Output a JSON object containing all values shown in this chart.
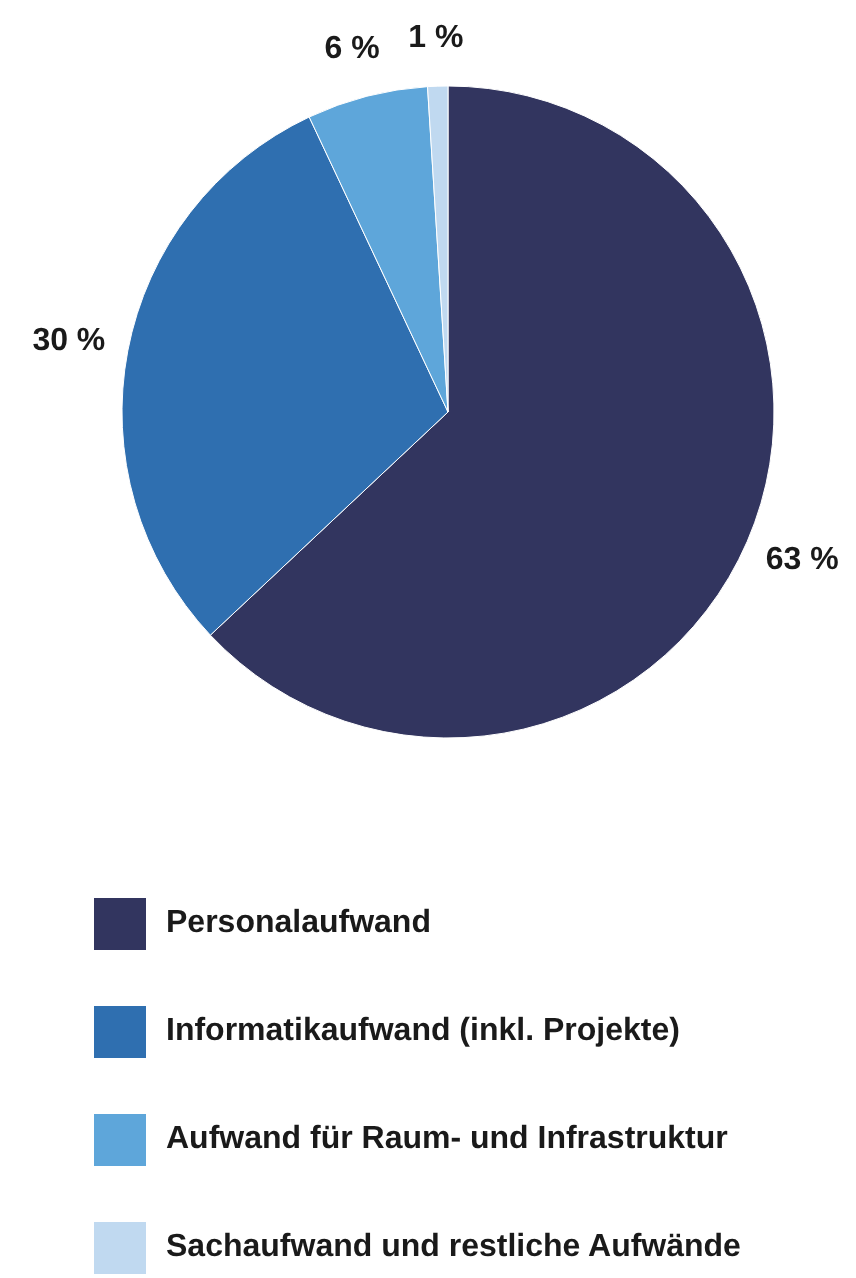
{
  "chart_data": {
    "type": "pie",
    "categories": [
      "Personalaufwand",
      "Informatikaufwand (inkl. Projekte)",
      "Aufwand für Raum- und Infrastruktur",
      "Sachaufwand und restliche Aufwände"
    ],
    "values": [
      63,
      30,
      6,
      1
    ],
    "colors": [
      "#32355f",
      "#2f6fb0",
      "#5ea6da",
      "#c0d9f0"
    ],
    "value_labels": [
      "63 %",
      "30 %",
      "6 %",
      "1 %"
    ],
    "legend": "bottom"
  }
}
